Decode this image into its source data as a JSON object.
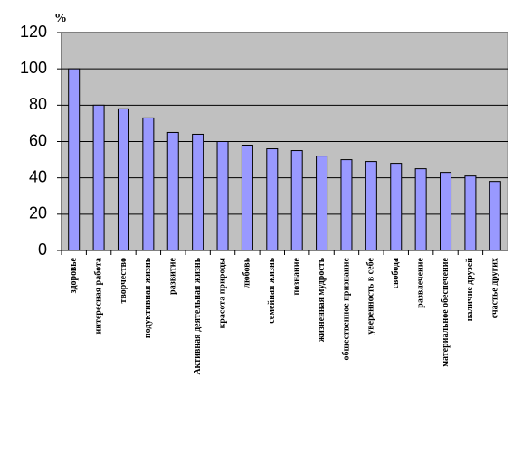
{
  "chart_data": {
    "type": "bar",
    "y_label": "%",
    "categories": [
      "здоровье",
      "интересная работа",
      "творчество",
      "подуктивная жизнь",
      "развитие",
      "Активная деятельная жизнь",
      "красота природы",
      "любовь",
      "семейная жизнь",
      "познание",
      "жизненная мудрость",
      "общественное признание",
      "уверенность в себе",
      "свобода",
      "развлечение",
      "материальное обеспечение",
      "наличие друзей",
      "счастье других"
    ],
    "values": [
      100,
      80,
      78,
      73,
      65,
      64,
      60,
      58,
      56,
      55,
      52,
      50,
      49,
      48,
      45,
      43,
      41,
      38
    ],
    "color": "#9999ff",
    "plot_background": "#c0c0c0",
    "ylim": [
      0,
      120
    ],
    "yticks": [
      0,
      20,
      40,
      60,
      80,
      100,
      120
    ],
    "grid": true
  }
}
